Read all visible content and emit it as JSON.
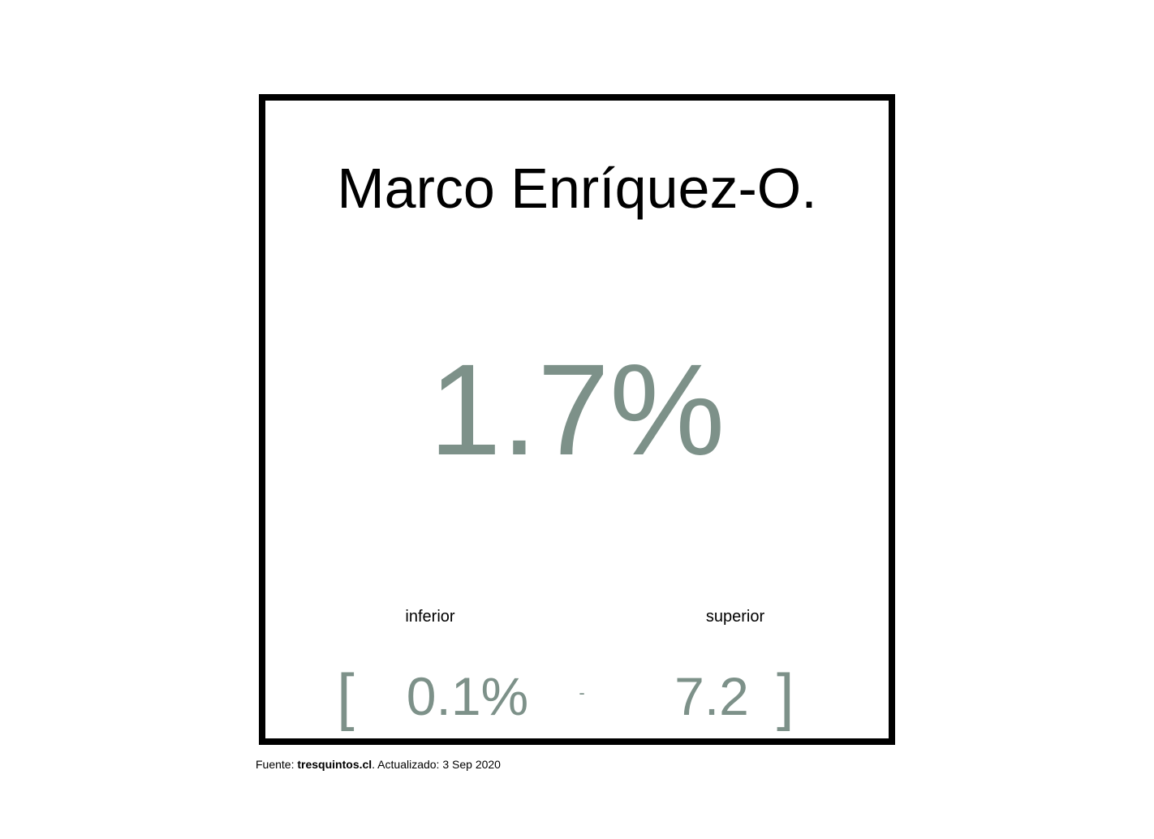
{
  "colors": {
    "value": "#7d9189",
    "text": "#000000",
    "border": "#000000",
    "background": "#ffffff"
  },
  "card": {
    "name": "Marco Enríquez-O.",
    "value": "1.7%",
    "labels": {
      "lower": "inferior",
      "upper": "superior"
    },
    "range": {
      "open_bracket": "[",
      "lower": "0.1%",
      "separator": "-",
      "upper": "7.2",
      "close_bracket": "]"
    }
  },
  "footer": {
    "prefix": "Fuente: ",
    "source": "tresquintos.cl",
    "suffix": ". Actualizado: 3 Sep 2020"
  }
}
